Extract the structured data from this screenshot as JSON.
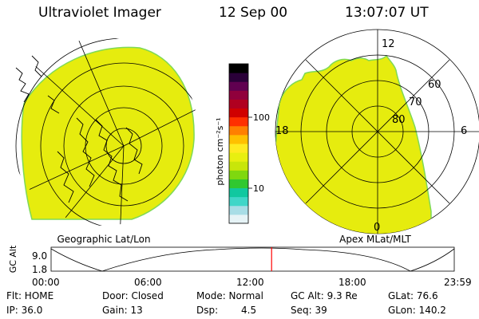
{
  "header": {
    "title": "Ultraviolet Imager",
    "date": "12 Sep 00",
    "time": "13:07:07 UT"
  },
  "left_panel": {
    "caption": "Geographic Lat/Lon"
  },
  "right_panel": {
    "caption": "Apex MLat/MLT",
    "mlt_labels": [
      "12",
      "18",
      "6",
      "0"
    ],
    "mlat_labels": [
      "60",
      "70",
      "80"
    ]
  },
  "colorbar": {
    "unit_label": "photon cm⁻²s⁻¹",
    "tick_labels": [
      "100",
      "10"
    ],
    "colors": [
      "#e6f3f6",
      "#a8dde6",
      "#40d6c8",
      "#10c8a0",
      "#30c830",
      "#7fd80f",
      "#c8e60a",
      "#e8ef10",
      "#ffea20",
      "#ffc000",
      "#ff8000",
      "#ff3000",
      "#d00000",
      "#b00020",
      "#90003c",
      "#600050",
      "#2a0038",
      "#000000"
    ]
  },
  "altitude_plot": {
    "axis_title": "GC Alt",
    "y_ticks": [
      "9.0",
      "1.8"
    ],
    "x_ticks": [
      "00:00",
      "06:00",
      "12:00",
      "18:00",
      "23:59"
    ],
    "marker_time_hours": 13.118,
    "marker_color": "#ff0000"
  },
  "status": {
    "row1": [
      "Flt: HOME",
      "Door: Closed",
      "Mode: Normal",
      "GC Alt: 9.3 Re",
      "GLat: 76.6"
    ],
    "row2_a": "IP: 36.0",
    "row2_b": "Gain: 13",
    "row2_c_label": "Dsp:",
    "row2_c_value": "4.5",
    "row2_d": "Seq: 39",
    "row2_e": "GLon: 140.2"
  },
  "image_fill_color": "#e6ec0e",
  "image_edge_color": "#7ed957"
}
